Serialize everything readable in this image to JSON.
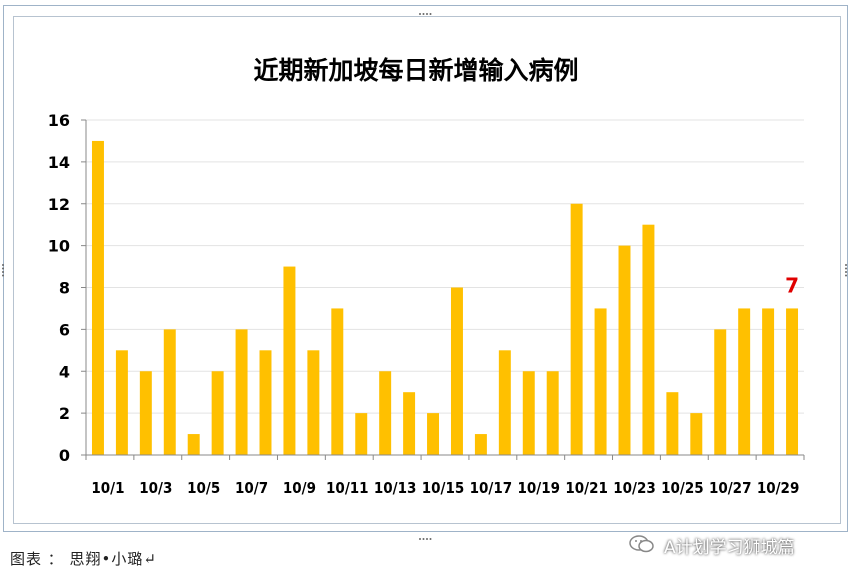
{
  "chart_data": {
    "type": "bar",
    "title": "近期新加坡每日新增输入病例",
    "categories": [
      "10/1",
      "10/2",
      "10/3",
      "10/4",
      "10/5",
      "10/6",
      "10/7",
      "10/8",
      "10/9",
      "10/10",
      "10/11",
      "10/12",
      "10/13",
      "10/14",
      "10/15",
      "10/16",
      "10/17",
      "10/18",
      "10/19",
      "10/20",
      "10/21",
      "10/22",
      "10/23",
      "10/24",
      "10/25",
      "10/26",
      "10/27",
      "10/28",
      "10/29",
      "10/30"
    ],
    "tick_labels": [
      "10/1",
      "10/3",
      "10/5",
      "10/7",
      "10/9",
      "10/11",
      "10/13",
      "10/15",
      "10/17",
      "10/19",
      "10/21",
      "10/23",
      "10/25",
      "10/27",
      "10/29"
    ],
    "values": [
      15,
      5,
      4,
      6,
      1,
      4,
      6,
      5,
      9,
      5,
      7,
      2,
      4,
      3,
      2,
      8,
      1,
      5,
      4,
      4,
      12,
      7,
      10,
      11,
      3,
      2,
      6,
      7,
      7,
      7
    ],
    "ylim": [
      0,
      16
    ],
    "yticks": [
      0,
      2,
      4,
      6,
      8,
      10,
      12,
      14,
      16
    ],
    "bar_color": "#ffc000",
    "annotation": {
      "text": "7",
      "color": "#e00000"
    },
    "grid": true
  },
  "caption": "图表 ： 思翔•小璐↵",
  "watermark": "A计划学习狮城篇"
}
